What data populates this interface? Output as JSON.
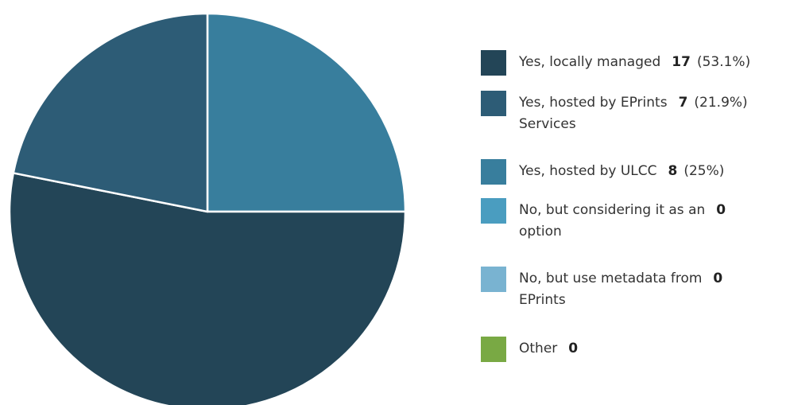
{
  "chart_data": {
    "type": "pie",
    "title": "",
    "slices": [
      {
        "label": "Yes, locally managed",
        "label_lines": [
          "Yes, locally managed"
        ],
        "count": "17",
        "percent": "(53.1%)",
        "value": 17,
        "color": "#234557"
      },
      {
        "label": "Yes, hosted by EPrints Services",
        "label_lines": [
          "Yes, hosted by EPrints",
          "Services"
        ],
        "count": "7",
        "percent": "(21.9%)",
        "value": 7,
        "color": "#2d5c76"
      },
      {
        "label": "Yes, hosted by ULCC",
        "label_lines": [
          "Yes, hosted by ULCC"
        ],
        "count": "8",
        "percent": "(25%)",
        "value": 8,
        "color": "#387e9d"
      },
      {
        "label": "No, but considering it as an option",
        "label_lines": [
          "No, but considering it as an",
          "option"
        ],
        "count": "0",
        "percent": "",
        "value": 0,
        "color": "#4a9dc0"
      },
      {
        "label": "No, but use metadata from EPrints",
        "label_lines": [
          "No, but use metadata from",
          "EPrints"
        ],
        "count": "0",
        "percent": "",
        "value": 0,
        "color": "#79b3d1"
      },
      {
        "label": "Other",
        "label_lines": [
          "Other"
        ],
        "count": "0",
        "percent": "",
        "value": 0,
        "color": "#79a944"
      }
    ],
    "pie_draw_order": [
      2,
      0,
      1
    ],
    "legend_position": "right"
  }
}
